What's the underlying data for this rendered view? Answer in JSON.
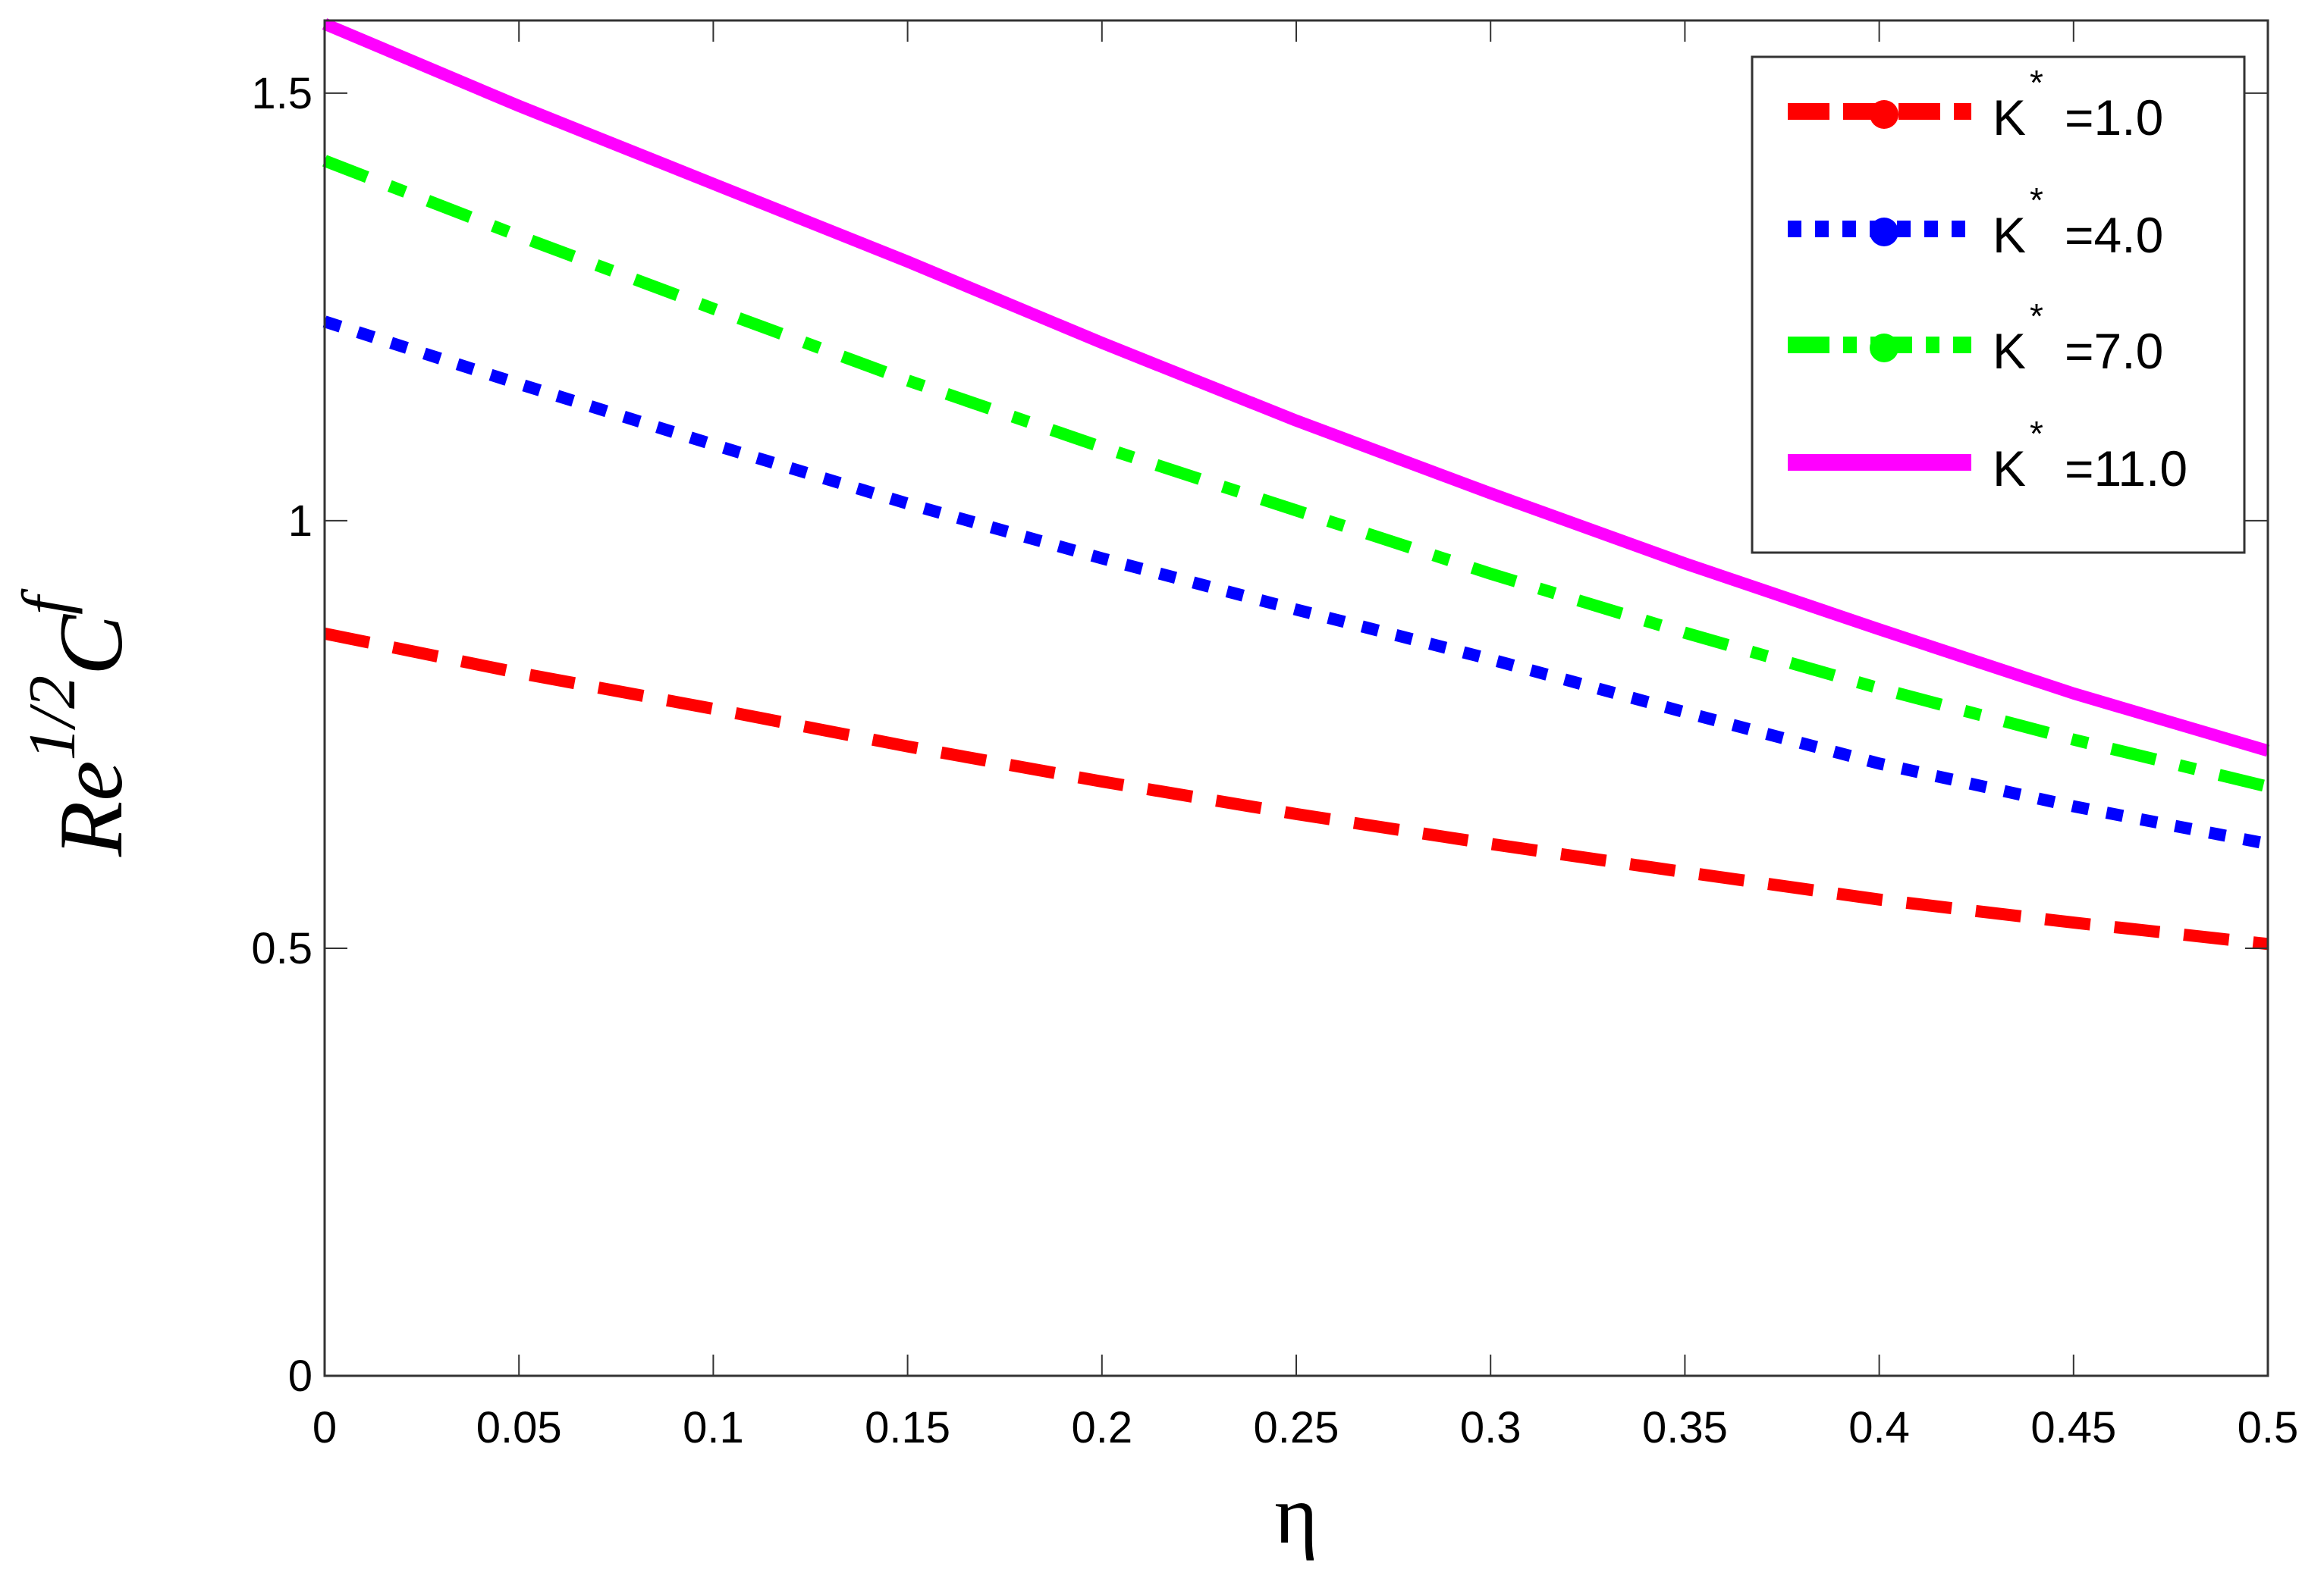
{
  "chart_data": {
    "type": "line",
    "title": "",
    "xlabel": "η",
    "ylabel": "Re^{1/2} C_f",
    "ylabel_parts": {
      "base": "Re",
      "sup": "1/2",
      "main": "C",
      "sub": "f"
    },
    "xlim": [
      0,
      0.5
    ],
    "ylim": [
      0,
      1.585
    ],
    "grid": false,
    "legend_position": "upper right",
    "x_ticks": [
      0,
      0.05,
      0.1,
      0.15,
      0.2,
      0.25,
      0.3,
      0.35,
      0.4,
      0.45,
      0.5
    ],
    "x_tick_labels": [
      "0",
      "0.05",
      "0.1",
      "0.15",
      "0.2",
      "0.25",
      "0.3",
      "0.35",
      "0.4",
      "0.45",
      "0.5"
    ],
    "y_ticks": [
      0,
      0.5,
      1,
      1.5
    ],
    "y_tick_labels": [
      "0",
      "0.5",
      "1",
      "1.5"
    ],
    "x": [
      0,
      0.05,
      0.1,
      0.15,
      0.2,
      0.25,
      0.3,
      0.35,
      0.4,
      0.45,
      0.5
    ],
    "series": [
      {
        "name": "K* =1.0",
        "label_main": "K",
        "label_sup": "*",
        "label_value": "=1.0",
        "color": "#ff0000",
        "style": "dashed",
        "values": [
          0.868,
          0.822,
          0.78,
          0.736,
          0.695,
          0.657,
          0.622,
          0.589,
          0.557,
          0.53,
          0.505
        ]
      },
      {
        "name": "K* =4.0",
        "label_main": "K",
        "label_sup": "*",
        "label_value": "=4.0",
        "color": "#0000ff",
        "style": "dotted",
        "values": [
          1.233,
          1.16,
          1.089,
          1.02,
          0.956,
          0.896,
          0.838,
          0.776,
          0.716,
          0.666,
          0.622
        ]
      },
      {
        "name": "K* =7.0",
        "label_main": "K",
        "label_sup": "*",
        "label_value": "=7.0",
        "color": "#00ff00",
        "style": "dashdot",
        "values": [
          1.421,
          1.333,
          1.248,
          1.164,
          1.086,
          1.012,
          0.938,
          0.869,
          0.804,
          0.744,
          0.689
        ]
      },
      {
        "name": "K* =11.0",
        "label_main": "K",
        "label_sup": "*",
        "label_value": "=11.0",
        "color": "#ff00ff",
        "style": "solid",
        "values": [
          1.581,
          1.485,
          1.394,
          1.303,
          1.208,
          1.117,
          1.032,
          0.95,
          0.873,
          0.798,
          0.731
        ]
      }
    ]
  }
}
